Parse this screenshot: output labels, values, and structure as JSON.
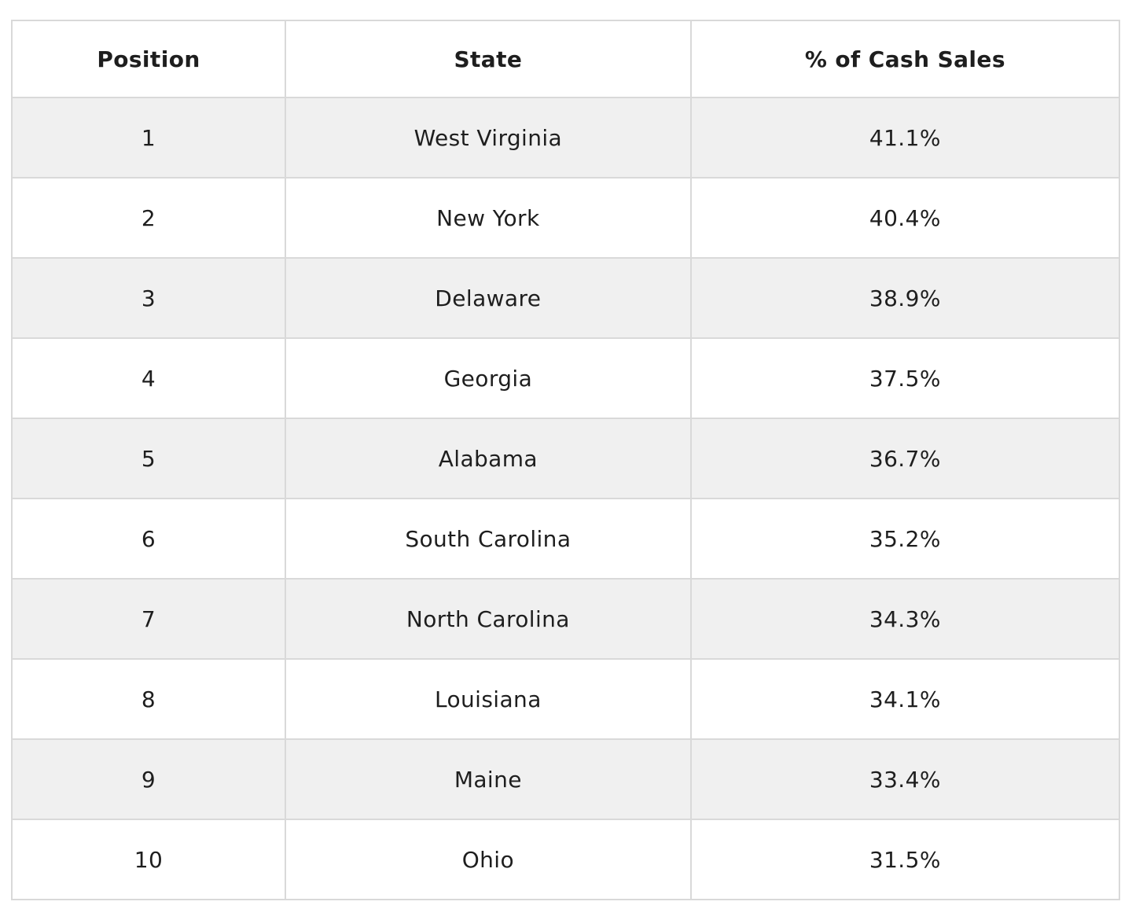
{
  "table": {
    "columns": [
      "Position",
      "State",
      "% of Cash Sales"
    ],
    "rows": [
      {
        "position": "1",
        "state": "West Virginia",
        "percent": "41.1%"
      },
      {
        "position": "2",
        "state": "New York",
        "percent": "40.4%"
      },
      {
        "position": "3",
        "state": "Delaware",
        "percent": "38.9%"
      },
      {
        "position": "4",
        "state": "Georgia",
        "percent": "37.5%"
      },
      {
        "position": "5",
        "state": "Alabama",
        "percent": "36.7%"
      },
      {
        "position": "6",
        "state": "South Carolina",
        "percent": "35.2%"
      },
      {
        "position": "7",
        "state": "North Carolina",
        "percent": "34.3%"
      },
      {
        "position": "8",
        "state": "Louisiana",
        "percent": "34.1%"
      },
      {
        "position": "9",
        "state": "Maine",
        "percent": "33.4%"
      },
      {
        "position": "10",
        "state": "Ohio",
        "percent": "31.5%"
      }
    ]
  },
  "colors": {
    "stripe_row_background": "#f0f0f0",
    "plain_row_background": "#ffffff",
    "border": "#d9d9d9",
    "text": "#1e1e1e"
  },
  "chart_data": {
    "type": "table",
    "title": "",
    "columns": [
      "Position",
      "State",
      "% of Cash Sales"
    ],
    "rows": [
      [
        1,
        "West Virginia",
        "41.1%"
      ],
      [
        2,
        "New York",
        "40.4%"
      ],
      [
        3,
        "Delaware",
        "38.9%"
      ],
      [
        4,
        "Georgia",
        "37.5%"
      ],
      [
        5,
        "Alabama",
        "36.7%"
      ],
      [
        6,
        "South Carolina",
        "35.2%"
      ],
      [
        7,
        "North Carolina",
        "34.3%"
      ],
      [
        8,
        "Louisiana",
        "34.1%"
      ],
      [
        9,
        "Maine",
        "33.4%"
      ],
      [
        10,
        "Ohio",
        "31.5%"
      ]
    ],
    "categories": [
      "West Virginia",
      "New York",
      "Delaware",
      "Georgia",
      "Alabama",
      "South Carolina",
      "North Carolina",
      "Louisiana",
      "Maine",
      "Ohio"
    ],
    "values": [
      41.1,
      40.4,
      38.9,
      37.5,
      36.7,
      35.2,
      34.3,
      34.1,
      33.4,
      31.5
    ],
    "value_unit": "%",
    "layout": {
      "striped_rows": true,
      "header_bold": true,
      "alignment": "center"
    }
  }
}
